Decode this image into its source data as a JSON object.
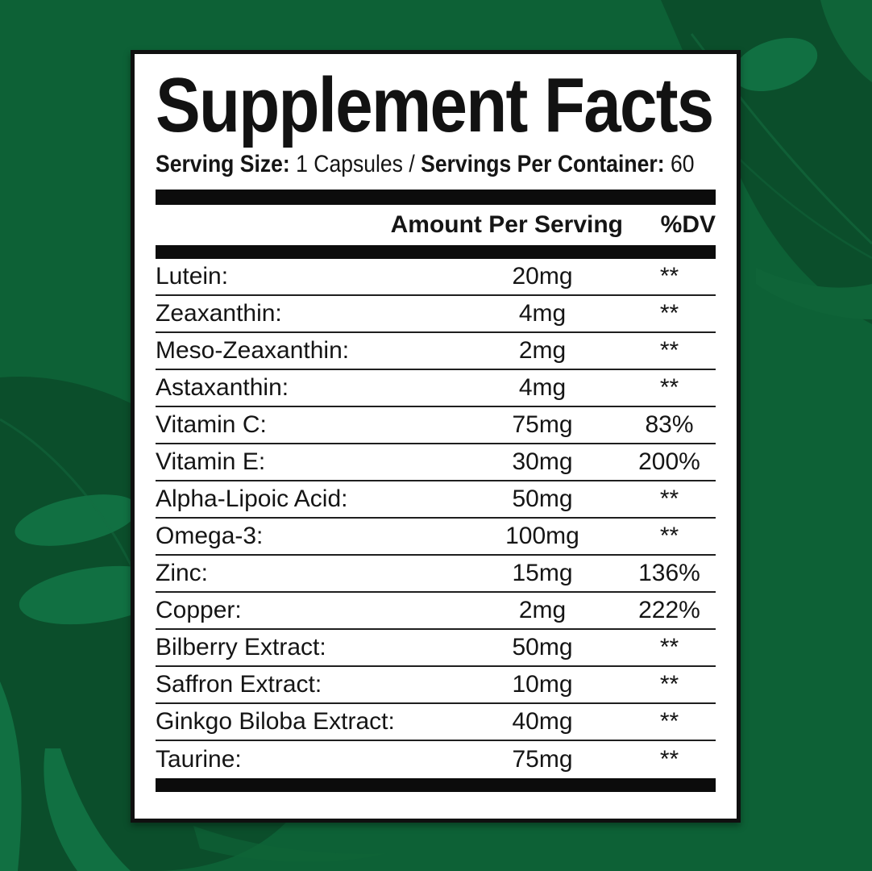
{
  "background": {
    "base_green": "#0d6136",
    "leaf_dark": "#0b4e2b",
    "leaf_light": "#117042",
    "leaf_light_soft": "#0f6438"
  },
  "label": {
    "title": "Supplement Facts",
    "serving": {
      "size_label": "Serving Size:",
      "size_value": "1 Capsules",
      "separator": "/",
      "container_label": "Servings Per Container:",
      "container_value": "60"
    },
    "columns": {
      "amount": "Amount Per Serving",
      "dv": "%DV"
    },
    "rows": [
      {
        "name": "Lutein:",
        "amount": "20mg",
        "dv": "**"
      },
      {
        "name": "Zeaxanthin:",
        "amount": "4mg",
        "dv": "**"
      },
      {
        "name": "Meso-Zeaxanthin:",
        "amount": "2mg",
        "dv": "**"
      },
      {
        "name": "Astaxanthin:",
        "amount": "4mg",
        "dv": "**"
      },
      {
        "name": "Vitamin C:",
        "amount": "75mg",
        "dv": "83%"
      },
      {
        "name": "Vitamin E:",
        "amount": "30mg",
        "dv": "200%"
      },
      {
        "name": "Alpha-Lipoic Acid:",
        "amount": "50mg",
        "dv": "**"
      },
      {
        "name": "Omega-3:",
        "amount": "100mg",
        "dv": "**"
      },
      {
        "name": "Zinc:",
        "amount": "15mg",
        "dv": "136%"
      },
      {
        "name": "Copper:",
        "amount": "2mg",
        "dv": "222%"
      },
      {
        "name": "Bilberry Extract:",
        "amount": "50mg",
        "dv": "**"
      },
      {
        "name": "Saffron Extract:",
        "amount": "10mg",
        "dv": "**"
      },
      {
        "name": "Ginkgo Biloba Extract:",
        "amount": "40mg",
        "dv": "**"
      },
      {
        "name": "Taurine:",
        "amount": "75mg",
        "dv": "**"
      }
    ]
  }
}
